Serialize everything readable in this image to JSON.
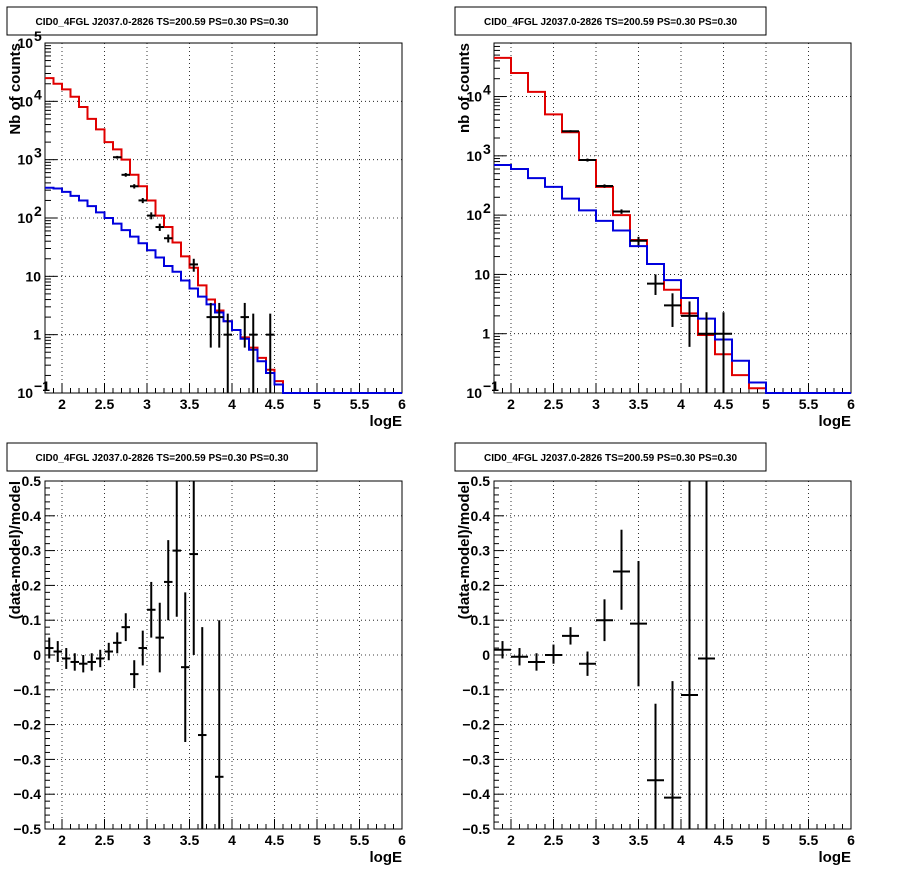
{
  "colors": {
    "data": "#000000",
    "total_model": "#e00000",
    "background_model": "#0000dd"
  },
  "chart_data": [
    {
      "type": "line",
      "title": "CID0_4FGL J2037.0-2826 TS=200.59 PS=0.30 PS=0.30",
      "xlabel": "logE",
      "ylabel": "Nb of counts",
      "xlim": [
        1.8,
        6
      ],
      "ylim": [
        0.1,
        100000
      ],
      "yscale": "log",
      "grid": true,
      "xticks": [
        "2",
        "2.5",
        "3",
        "3.5",
        "4",
        "4.5",
        "5",
        "5.5",
        "6"
      ],
      "yticks": [
        {
          "v": 0.1,
          "label": "10",
          "sup": "−1"
        },
        {
          "v": 1,
          "label": "1"
        },
        {
          "v": 10,
          "label": "10"
        },
        {
          "v": 100,
          "label": "10",
          "sup": "2"
        },
        {
          "v": 1000,
          "label": "10",
          "sup": "3"
        },
        {
          "v": 10000,
          "label": "10",
          "sup": "4"
        },
        {
          "v": 100000,
          "label": "10",
          "sup": "5"
        }
      ],
      "series": [
        {
          "kind": "step",
          "color": "total_model",
          "xedges": [
            1.8,
            1.9,
            2.0,
            2.1,
            2.2,
            2.3,
            2.4,
            2.5,
            2.6,
            2.7,
            2.8,
            2.9,
            3.0,
            3.1,
            3.2,
            3.3,
            3.4,
            3.5,
            3.6,
            3.7,
            3.8,
            3.9,
            4.0,
            4.1,
            4.2,
            4.3,
            4.4,
            4.5,
            4.6,
            4.7,
            4.8,
            4.9,
            5.0,
            5.1,
            5.2,
            5.3,
            5.4,
            5.5,
            5.6,
            5.7,
            5.8,
            5.9,
            6.0
          ],
          "values": [
            25000,
            20000,
            16000,
            12000,
            8000,
            5000,
            3300,
            2000,
            1500,
            1000,
            550,
            350,
            200,
            110,
            70,
            38,
            22,
            14,
            7,
            4,
            2.6,
            1.7,
            1.2,
            0.9,
            0.6,
            0.4,
            0.25,
            0.16,
            0.1,
            0.1,
            0.1,
            0.1,
            0.1,
            0.1,
            0.1,
            0.1,
            0.1,
            0.1,
            0.1,
            0.1,
            0.1,
            0.1
          ]
        },
        {
          "kind": "step",
          "color": "background_model",
          "xedges": [
            1.8,
            1.9,
            2.0,
            2.1,
            2.2,
            2.3,
            2.4,
            2.5,
            2.6,
            2.7,
            2.8,
            2.9,
            3.0,
            3.1,
            3.2,
            3.3,
            3.4,
            3.5,
            3.6,
            3.7,
            3.8,
            3.9,
            4.0,
            4.1,
            4.2,
            4.3,
            4.4,
            4.5,
            4.6,
            4.7,
            4.8,
            4.9,
            5.0,
            5.1,
            5.2,
            5.3,
            5.4,
            5.5,
            5.6,
            5.7,
            5.8,
            5.9,
            6.0
          ],
          "values": [
            330,
            320,
            280,
            240,
            200,
            160,
            125,
            100,
            80,
            62,
            48,
            37,
            28,
            21,
            15,
            12,
            8.5,
            6.2,
            4.5,
            3.3,
            2.4,
            1.7,
            1.2,
            0.85,
            0.55,
            0.35,
            0.22,
            0.14,
            0.1,
            0.1,
            0.1,
            0.1,
            0.1,
            0.1,
            0.1,
            0.1,
            0.1,
            0.1,
            0.1,
            0.1,
            0.1,
            0.1
          ]
        },
        {
          "kind": "points",
          "color": "data",
          "points": [
            {
              "x": 2.65,
              "xerr": 0.05,
              "y": 1100,
              "ylo": 1040,
              "yhi": 1160
            },
            {
              "x": 2.75,
              "xerr": 0.05,
              "y": 550,
              "ylo": 510,
              "yhi": 590
            },
            {
              "x": 2.85,
              "xerr": 0.05,
              "y": 350,
              "ylo": 320,
              "yhi": 380
            },
            {
              "x": 2.95,
              "xerr": 0.05,
              "y": 200,
              "ylo": 180,
              "yhi": 220
            },
            {
              "x": 3.05,
              "xerr": 0.05,
              "y": 110,
              "ylo": 95,
              "yhi": 125
            },
            {
              "x": 3.15,
              "xerr": 0.05,
              "y": 70,
              "ylo": 60,
              "yhi": 80
            },
            {
              "x": 3.25,
              "xerr": 0.05,
              "y": 45,
              "ylo": 38,
              "yhi": 52
            },
            {
              "x": 3.55,
              "xerr": 0.05,
              "y": 16,
              "ylo": 12,
              "yhi": 20
            },
            {
              "x": 3.75,
              "xerr": 0.05,
              "y": 2,
              "ylo": 0.6,
              "yhi": 3.5
            },
            {
              "x": 3.85,
              "xerr": 0.05,
              "y": 2,
              "ylo": 0.6,
              "yhi": 3.5
            },
            {
              "x": 3.95,
              "xerr": 0.05,
              "y": 1,
              "ylo": 0.1,
              "yhi": 2.3
            },
            {
              "x": 4.15,
              "xerr": 0.05,
              "y": 2,
              "ylo": 0.6,
              "yhi": 3.5
            },
            {
              "x": 4.25,
              "xerr": 0.05,
              "y": 1,
              "ylo": 0.1,
              "yhi": 2.3
            },
            {
              "x": 4.45,
              "xerr": 0.05,
              "y": 1,
              "ylo": 0.1,
              "yhi": 2.3
            }
          ]
        }
      ]
    },
    {
      "type": "line",
      "title": "CID0_4FGL J2037.0-2826 TS=200.59 PS=0.30 PS=0.30",
      "xlabel": "logE",
      "ylabel": "nb of counts",
      "xlim": [
        1.8,
        6
      ],
      "ylim": [
        0.1,
        80000
      ],
      "yscale": "log",
      "grid": true,
      "xticks": [
        "2",
        "2.5",
        "3",
        "3.5",
        "4",
        "4.5",
        "5",
        "5.5",
        "6"
      ],
      "yticks": [
        {
          "v": 0.1,
          "label": "10",
          "sup": "−1"
        },
        {
          "v": 1,
          "label": "1"
        },
        {
          "v": 10,
          "label": "10"
        },
        {
          "v": 100,
          "label": "10",
          "sup": "2"
        },
        {
          "v": 1000,
          "label": "10",
          "sup": "3"
        },
        {
          "v": 10000,
          "label": "10",
          "sup": "4"
        }
      ],
      "series": [
        {
          "kind": "step",
          "color": "total_model",
          "xedges": [
            1.8,
            2.0,
            2.2,
            2.4,
            2.6,
            2.8,
            3.0,
            3.2,
            3.4,
            3.6,
            3.8,
            4.0,
            4.2,
            4.4,
            4.6,
            4.8,
            5.0,
            5.2,
            5.4,
            5.6,
            5.8,
            6.0
          ],
          "values": [
            45000,
            25000,
            12000,
            5000,
            2500,
            850,
            300,
            100,
            38,
            15,
            5.5,
            2.2,
            0.95,
            0.45,
            0.2,
            0.12,
            0.1,
            0.1,
            0.1,
            0.1,
            0.1
          ]
        },
        {
          "kind": "step",
          "color": "background_model",
          "xedges": [
            1.8,
            2.0,
            2.2,
            2.4,
            2.6,
            2.8,
            3.0,
            3.2,
            3.4,
            3.6,
            3.8,
            4.0,
            4.2,
            4.4,
            4.6,
            4.8,
            5.0,
            5.2,
            5.4,
            5.6,
            5.8,
            6.0
          ],
          "values": [
            700,
            600,
            420,
            300,
            190,
            120,
            80,
            55,
            30,
            15,
            8,
            4,
            1.8,
            0.8,
            0.35,
            0.15,
            0.1,
            0.1,
            0.1,
            0.1,
            0.1
          ]
        },
        {
          "kind": "points",
          "color": "data",
          "points": [
            {
              "x": 2.7,
              "xerr": 0.1,
              "y": 2600,
              "ylo": 2500,
              "yhi": 2700
            },
            {
              "x": 2.9,
              "xerr": 0.1,
              "y": 850,
              "ylo": 800,
              "yhi": 900
            },
            {
              "x": 3.1,
              "xerr": 0.1,
              "y": 310,
              "ylo": 290,
              "yhi": 330
            },
            {
              "x": 3.3,
              "xerr": 0.1,
              "y": 115,
              "ylo": 105,
              "yhi": 125
            },
            {
              "x": 3.5,
              "xerr": 0.1,
              "y": 37,
              "ylo": 31,
              "yhi": 43
            },
            {
              "x": 3.7,
              "xerr": 0.1,
              "y": 7,
              "ylo": 4.5,
              "yhi": 10
            },
            {
              "x": 3.9,
              "xerr": 0.1,
              "y": 3,
              "ylo": 1.3,
              "yhi": 4.8
            },
            {
              "x": 4.1,
              "xerr": 0.1,
              "y": 2,
              "ylo": 0.6,
              "yhi": 3.5
            },
            {
              "x": 4.3,
              "xerr": 0.1,
              "y": 1,
              "ylo": 0.1,
              "yhi": 2.3
            },
            {
              "x": 4.5,
              "xerr": 0.1,
              "y": 1,
              "ylo": 0.1,
              "yhi": 2.3
            }
          ]
        }
      ]
    },
    {
      "type": "scatter",
      "title": "CID0_4FGL J2037.0-2826 TS=200.59 PS=0.30 PS=0.30",
      "xlabel": "logE",
      "ylabel": "(data-model)/model",
      "xlim": [
        1.8,
        6
      ],
      "ylim": [
        -0.5,
        0.5
      ],
      "grid": true,
      "xticks": [
        "2",
        "2.5",
        "3",
        "3.5",
        "4",
        "4.5",
        "5",
        "5.5",
        "6"
      ],
      "yticks": [
        "−0.5",
        "−0.4",
        "−0.3",
        "−0.2",
        "−0.1",
        "0",
        "0.1",
        "0.2",
        "0.3",
        "0.4",
        "0.5"
      ],
      "series": [
        {
          "kind": "points",
          "color": "data",
          "points": [
            {
              "x": 1.85,
              "xerr": 0.05,
              "y": 0.02,
              "ylo": -0.01,
              "yhi": 0.05
            },
            {
              "x": 1.95,
              "xerr": 0.05,
              "y": 0.01,
              "ylo": -0.02,
              "yhi": 0.04
            },
            {
              "x": 2.05,
              "xerr": 0.05,
              "y": -0.01,
              "ylo": -0.04,
              "yhi": 0.02
            },
            {
              "x": 2.15,
              "xerr": 0.05,
              "y": -0.02,
              "ylo": -0.045,
              "yhi": 0.005
            },
            {
              "x": 2.25,
              "xerr": 0.05,
              "y": -0.025,
              "ylo": -0.05,
              "yhi": 0.0
            },
            {
              "x": 2.35,
              "xerr": 0.05,
              "y": -0.02,
              "ylo": -0.045,
              "yhi": 0.005
            },
            {
              "x": 2.45,
              "xerr": 0.05,
              "y": -0.01,
              "ylo": -0.035,
              "yhi": 0.015
            },
            {
              "x": 2.55,
              "xerr": 0.05,
              "y": 0.01,
              "ylo": -0.015,
              "yhi": 0.035
            },
            {
              "x": 2.65,
              "xerr": 0.05,
              "y": 0.035,
              "ylo": 0.005,
              "yhi": 0.065
            },
            {
              "x": 2.75,
              "xerr": 0.05,
              "y": 0.08,
              "ylo": 0.04,
              "yhi": 0.12
            },
            {
              "x": 2.85,
              "xerr": 0.05,
              "y": -0.055,
              "ylo": -0.095,
              "yhi": -0.015
            },
            {
              "x": 2.95,
              "xerr": 0.05,
              "y": 0.02,
              "ylo": -0.03,
              "yhi": 0.07
            },
            {
              "x": 3.05,
              "xerr": 0.05,
              "y": 0.13,
              "ylo": 0.05,
              "yhi": 0.21
            },
            {
              "x": 3.15,
              "xerr": 0.05,
              "y": 0.05,
              "ylo": -0.05,
              "yhi": 0.15
            },
            {
              "x": 3.25,
              "xerr": 0.05,
              "y": 0.21,
              "ylo": 0.1,
              "yhi": 0.33
            },
            {
              "x": 3.35,
              "xerr": 0.05,
              "y": 0.3,
              "ylo": 0.11,
              "yhi": 0.5
            },
            {
              "x": 3.45,
              "xerr": 0.05,
              "y": -0.035,
              "ylo": -0.25,
              "yhi": 0.18
            },
            {
              "x": 3.55,
              "xerr": 0.05,
              "y": 0.29,
              "ylo": 0.0,
              "yhi": 0.5
            },
            {
              "x": 3.65,
              "xerr": 0.05,
              "y": -0.23,
              "ylo": -0.5,
              "yhi": 0.08
            },
            {
              "x": 3.85,
              "xerr": 0.05,
              "y": -0.35,
              "ylo": -0.5,
              "yhi": 0.1
            }
          ]
        }
      ]
    },
    {
      "type": "scatter",
      "title": "CID0_4FGL J2037.0-2826 TS=200.59 PS=0.30 PS=0.30",
      "xlabel": "logE",
      "ylabel": "(data-model)/model",
      "xlim": [
        1.8,
        6
      ],
      "ylim": [
        -0.5,
        0.5
      ],
      "grid": true,
      "xticks": [
        "2",
        "2.5",
        "3",
        "3.5",
        "4",
        "4.5",
        "5",
        "5.5",
        "6"
      ],
      "yticks": [
        "−0.5",
        "−0.4",
        "−0.3",
        "−0.2",
        "−0.1",
        "0",
        "0.1",
        "0.2",
        "0.3",
        "0.4",
        "0.5"
      ],
      "series": [
        {
          "kind": "points",
          "color": "data",
          "points": [
            {
              "x": 1.9,
              "xerr": 0.1,
              "y": 0.015,
              "ylo": -0.01,
              "yhi": 0.04
            },
            {
              "x": 2.1,
              "xerr": 0.1,
              "y": -0.005,
              "ylo": -0.03,
              "yhi": 0.02
            },
            {
              "x": 2.3,
              "xerr": 0.1,
              "y": -0.02,
              "ylo": -0.045,
              "yhi": 0.005
            },
            {
              "x": 2.5,
              "xerr": 0.1,
              "y": 0.0,
              "ylo": -0.025,
              "yhi": 0.03
            },
            {
              "x": 2.7,
              "xerr": 0.1,
              "y": 0.055,
              "ylo": 0.03,
              "yhi": 0.08
            },
            {
              "x": 2.9,
              "xerr": 0.1,
              "y": -0.025,
              "ylo": -0.06,
              "yhi": 0.01
            },
            {
              "x": 3.1,
              "xerr": 0.1,
              "y": 0.1,
              "ylo": 0.04,
              "yhi": 0.16
            },
            {
              "x": 3.3,
              "xerr": 0.1,
              "y": 0.24,
              "ylo": 0.13,
              "yhi": 0.36
            },
            {
              "x": 3.5,
              "xerr": 0.1,
              "y": 0.09,
              "ylo": -0.09,
              "yhi": 0.27
            },
            {
              "x": 3.7,
              "xerr": 0.1,
              "y": -0.36,
              "ylo": -0.5,
              "yhi": -0.14
            },
            {
              "x": 3.9,
              "xerr": 0.1,
              "y": -0.41,
              "ylo": -0.5,
              "yhi": -0.075
            },
            {
              "x": 4.1,
              "xerr": 0.1,
              "y": -0.115,
              "ylo": -0.5,
              "yhi": 0.5
            },
            {
              "x": 4.3,
              "xerr": 0.1,
              "y": -0.01,
              "ylo": -0.5,
              "yhi": 0.5
            }
          ]
        }
      ]
    }
  ]
}
